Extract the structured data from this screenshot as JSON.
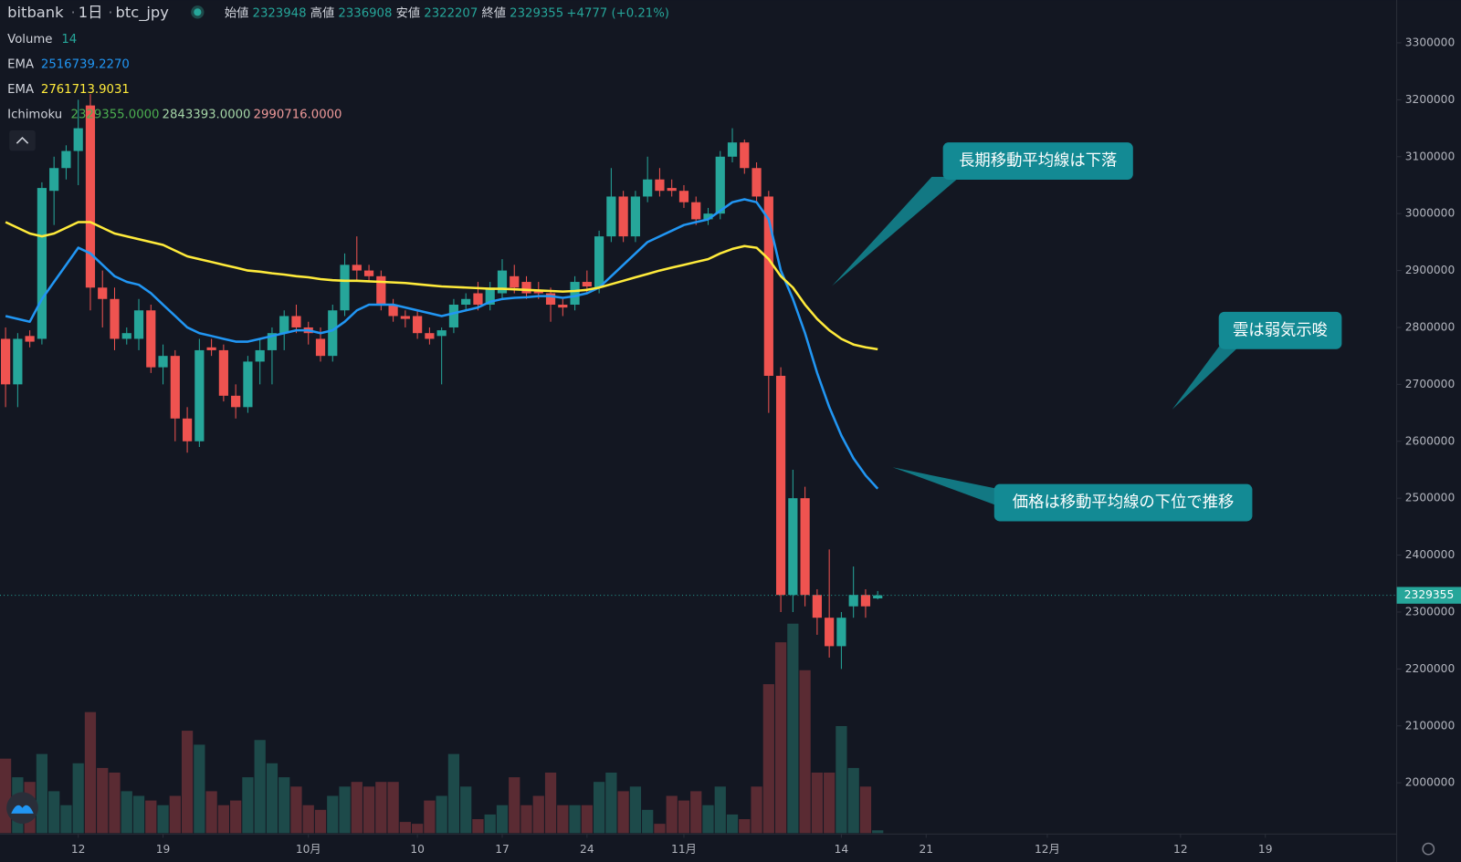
{
  "chart_data": {
    "type": "candlestick",
    "header": {
      "exchange": "bitbank",
      "interval": "1日",
      "symbol": "btc_jpy",
      "open_label": "始値",
      "high_label": "高値",
      "low_label": "安値",
      "close_label": "終値",
      "change_label": "+4777 (+0.21%)"
    },
    "up_color": "#26a69a",
    "down_color": "#ef5350",
    "open": [
      2780000,
      2700000,
      2785000,
      2780000,
      3040000,
      3080000,
      3110000,
      3190000,
      2870000,
      2850000,
      2780000,
      2780000,
      2830000,
      2730000,
      2750000,
      2640000,
      2600000,
      2765000,
      2760000,
      2680000,
      2660000,
      2740000,
      2760000,
      2790000,
      2820000,
      2800000,
      2780000,
      2750000,
      2830000,
      2910000,
      2900000,
      2890000,
      2840000,
      2820000,
      2820000,
      2790000,
      2785000,
      2800000,
      2840000,
      2860000,
      2840000,
      2860000,
      2890000,
      2880000,
      2865000,
      2860000,
      2840000,
      2840000,
      2880000,
      2870000,
      2960000,
      3030000,
      2960000,
      3030000,
      3060000,
      3045000,
      3040000,
      3020000,
      2990000,
      3000000,
      3100000,
      3125000,
      3080000,
      3030000,
      2715000,
      2330000,
      2500000,
      2330000,
      2290000,
      2240000,
      2310000,
      2330000,
      2323948
    ],
    "high": [
      2800000,
      2790000,
      2795000,
      3055000,
      3100000,
      3120000,
      3200000,
      3210000,
      2900000,
      2870000,
      2800000,
      2850000,
      2840000,
      2770000,
      2760000,
      2660000,
      2780000,
      2780000,
      2770000,
      2700000,
      2750000,
      2780000,
      2800000,
      2830000,
      2840000,
      2810000,
      2800000,
      2840000,
      2930000,
      2960000,
      2910000,
      2900000,
      2850000,
      2830000,
      2830000,
      2800000,
      2800000,
      2850000,
      2860000,
      2880000,
      2880000,
      2920000,
      2910000,
      2890000,
      2880000,
      2870000,
      2850000,
      2890000,
      2900000,
      2970000,
      3080000,
      3040000,
      3040000,
      3100000,
      3080000,
      3060000,
      3050000,
      3030000,
      3010000,
      3110000,
      3150000,
      3130000,
      3090000,
      3040000,
      2730000,
      2550000,
      2520000,
      2340000,
      2410000,
      2300000,
      2380000,
      2340000,
      2336908
    ],
    "low": [
      2660000,
      2660000,
      2765000,
      2770000,
      2980000,
      3060000,
      3050000,
      2830000,
      2800000,
      2760000,
      2770000,
      2760000,
      2720000,
      2700000,
      2600000,
      2580000,
      2590000,
      2750000,
      2670000,
      2640000,
      2650000,
      2700000,
      2700000,
      2760000,
      2790000,
      2770000,
      2740000,
      2740000,
      2820000,
      2880000,
      2880000,
      2830000,
      2810000,
      2800000,
      2780000,
      2770000,
      2700000,
      2790000,
      2830000,
      2830000,
      2830000,
      2850000,
      2860000,
      2850000,
      2850000,
      2810000,
      2820000,
      2830000,
      2860000,
      2860000,
      2950000,
      2950000,
      2950000,
      3020000,
      3030000,
      3030000,
      3010000,
      2980000,
      2980000,
      2990000,
      3090000,
      3070000,
      3020000,
      2650000,
      2300000,
      2300000,
      2310000,
      2260000,
      2220000,
      2200000,
      2290000,
      2290000,
      2322207
    ],
    "close": [
      2700000,
      2780000,
      2775000,
      3045000,
      3080000,
      3110000,
      3150000,
      2870000,
      2850000,
      2780000,
      2790000,
      2830000,
      2730000,
      2750000,
      2640000,
      2600000,
      2760000,
      2760000,
      2680000,
      2660000,
      2740000,
      2760000,
      2790000,
      2820000,
      2800000,
      2790000,
      2750000,
      2830000,
      2910000,
      2900000,
      2890000,
      2840000,
      2820000,
      2815000,
      2790000,
      2780000,
      2795000,
      2840000,
      2850000,
      2840000,
      2870000,
      2900000,
      2870000,
      2860000,
      2860000,
      2840000,
      2835000,
      2880000,
      2872000,
      2960000,
      3030000,
      2960000,
      3030000,
      3060000,
      3040000,
      3040000,
      3020000,
      2990000,
      3000000,
      3100000,
      3125000,
      3080000,
      3030000,
      2715000,
      2330000,
      2500000,
      2330000,
      2290000,
      2240000,
      2290000,
      2330000,
      2310000,
      2329355
    ],
    "volume": {
      "name": "Volume",
      "period": 14,
      "vlim": [
        0,
        320
      ],
      "up_color": "#1d4a4a",
      "down_color": "#5a2b33",
      "values": [
        80,
        60,
        55,
        85,
        45,
        30,
        75,
        130,
        70,
        65,
        45,
        40,
        35,
        30,
        40,
        110,
        95,
        45,
        30,
        35,
        60,
        100,
        75,
        60,
        50,
        30,
        25,
        40,
        50,
        55,
        50,
        55,
        55,
        12,
        10,
        35,
        40,
        85,
        50,
        15,
        20,
        30,
        60,
        30,
        40,
        65,
        30,
        30,
        30,
        55,
        65,
        45,
        50,
        25,
        10,
        40,
        35,
        45,
        30,
        50,
        20,
        15,
        50,
        160,
        205,
        225,
        175,
        65,
        65,
        115,
        70,
        50,
        3
      ]
    },
    "series": [
      {
        "name": "EMA",
        "color": "#2196f3",
        "current": {
          "value": 2516739.227,
          "label": "2516739.2270"
        },
        "values": [
          2820000,
          2815000,
          2810000,
          2850000,
          2880000,
          2910000,
          2940000,
          2930000,
          2910000,
          2890000,
          2880000,
          2875000,
          2860000,
          2840000,
          2820000,
          2800000,
          2790000,
          2785000,
          2780000,
          2775000,
          2775000,
          2780000,
          2785000,
          2790000,
          2795000,
          2795000,
          2790000,
          2795000,
          2810000,
          2830000,
          2840000,
          2840000,
          2840000,
          2835000,
          2830000,
          2825000,
          2820000,
          2825000,
          2830000,
          2835000,
          2845000,
          2850000,
          2852000,
          2853000,
          2855000,
          2855000,
          2852000,
          2855000,
          2860000,
          2870000,
          2890000,
          2910000,
          2930000,
          2950000,
          2960000,
          2970000,
          2980000,
          2985000,
          2990000,
          3005000,
          3020000,
          3025000,
          3020000,
          2990000,
          2900000,
          2850000,
          2790000,
          2720000,
          2660000,
          2610000,
          2570000,
          2540000,
          2516739.227
        ]
      },
      {
        "name": "EMA",
        "color": "#ffeb3b",
        "current": {
          "value": 2761713.9031,
          "label": "2761713.9031"
        },
        "values": [
          2985000,
          2975000,
          2965000,
          2960000,
          2965000,
          2975000,
          2985000,
          2985000,
          2975000,
          2965000,
          2960000,
          2955000,
          2950000,
          2945000,
          2935000,
          2925000,
          2920000,
          2915000,
          2910000,
          2905000,
          2900000,
          2898000,
          2895000,
          2893000,
          2890000,
          2888000,
          2885000,
          2883000,
          2882000,
          2882000,
          2881000,
          2880000,
          2879000,
          2878000,
          2876000,
          2874000,
          2872000,
          2871000,
          2870000,
          2869000,
          2868000,
          2868000,
          2867000,
          2866000,
          2865000,
          2864000,
          2863000,
          2864000,
          2866000,
          2870000,
          2876000,
          2882000,
          2888000,
          2894000,
          2900000,
          2905000,
          2910000,
          2915000,
          2920000,
          2930000,
          2938000,
          2943000,
          2940000,
          2920000,
          2890000,
          2870000,
          2840000,
          2815000,
          2795000,
          2780000,
          2770000,
          2765000,
          2761713.9031
        ]
      }
    ],
    "ichimoku": {
      "name": "Ichimoku",
      "colors": [
        "#4caf50",
        "#a5d6a7",
        "#ef9a9a"
      ],
      "values": [
        {
          "value": 2329355,
          "label": "2329355.0000"
        },
        {
          "value": 2843393,
          "label": "2843393.0000"
        },
        {
          "value": 2990716,
          "label": "2990716.0000"
        }
      ]
    },
    "xlim": [
      -0.46,
      114.77
    ],
    "xticks": [
      {
        "value": 6,
        "label": "12"
      },
      {
        "value": 13,
        "label": "19"
      },
      {
        "value": 25,
        "label": "10月"
      },
      {
        "value": 34,
        "label": "10"
      },
      {
        "value": 41,
        "label": "17"
      },
      {
        "value": 48,
        "label": "24"
      },
      {
        "value": 56,
        "label": "11月"
      },
      {
        "value": 69,
        "label": "14"
      },
      {
        "value": 76,
        "label": "21"
      },
      {
        "value": 86,
        "label": "12月"
      },
      {
        "value": 97,
        "label": "12"
      },
      {
        "value": 104,
        "label": "19"
      }
    ],
    "ylim": [
      1911600,
      3375200
    ],
    "yticks": [
      2000000,
      2100000,
      2200000,
      2300000,
      2400000,
      2500000,
      2600000,
      2700000,
      2800000,
      2900000,
      3000000,
      3100000,
      3200000,
      3300000
    ],
    "annotations": [
      {
        "text": "長期移動平均線は下落"
      },
      {
        "text": "雲は弱気示唆"
      },
      {
        "text": "価格は移動平均線の下位で推移"
      }
    ]
  }
}
